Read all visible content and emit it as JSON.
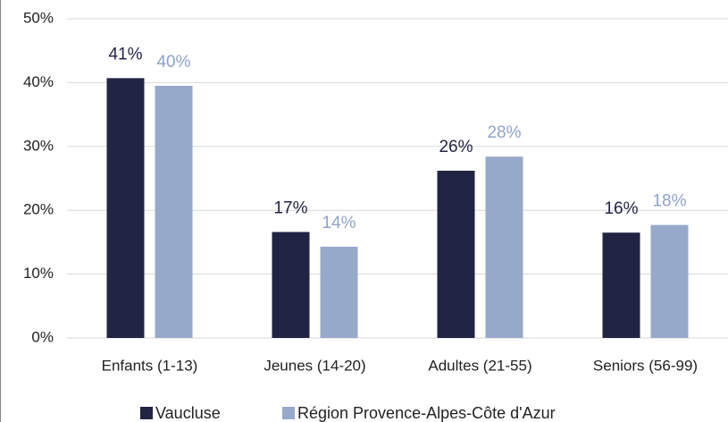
{
  "chart_data": {
    "type": "bar",
    "categories": [
      "Enfants (1-13)",
      "Jeunes (14-20)",
      "Adultes (21-55)",
      "Seniors (56-99)"
    ],
    "series": [
      {
        "name": "Vaucluse",
        "color": "#222444",
        "values": [
          40.7,
          16.6,
          26.2,
          16.5
        ],
        "value_labels": [
          "41%",
          "17%",
          "26%",
          "16%"
        ],
        "label_color": "#222444"
      },
      {
        "name": "Région Provence-Alpes-Côte d'Azur",
        "color": "#97a9cb",
        "values": [
          39.5,
          14.3,
          28.4,
          17.7
        ],
        "value_labels": [
          "40%",
          "14%",
          "28%",
          "18%"
        ],
        "label_color": "#8fa3c8"
      }
    ],
    "ylim": [
      0,
      50
    ],
    "yticks": [
      {
        "value": 0,
        "label": "0%"
      },
      {
        "value": 10,
        "label": "10%"
      },
      {
        "value": 20,
        "label": "20%"
      },
      {
        "value": 30,
        "label": "30%"
      },
      {
        "value": 40,
        "label": "40%"
      },
      {
        "value": 50,
        "label": "50%"
      }
    ],
    "grid": true,
    "legend": "bottom"
  }
}
